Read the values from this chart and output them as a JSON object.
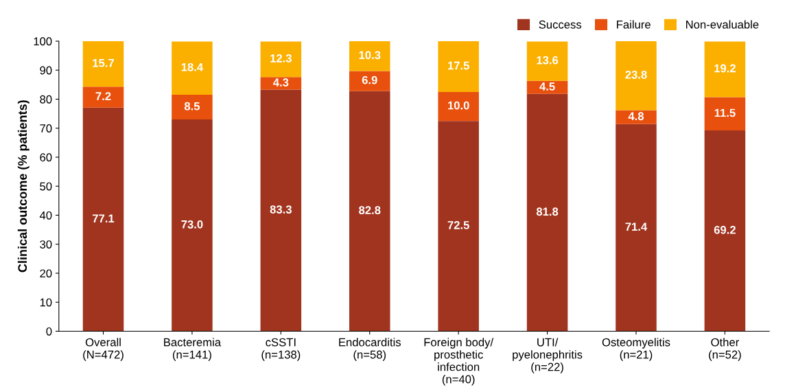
{
  "chart_data": {
    "type": "bar",
    "stacked": true,
    "ylabel": "Clinical outcome (% patients)",
    "categories": [
      "Overall\n(N=472)",
      "Bacteremia\n(n=141)",
      "cSSTI\n(n=138)",
      "Endocarditis\n(n=58)",
      "Foreign body/\nprosthetic\ninfection\n(n=40)",
      "UTI/\npyelonephritis\n(n=22)",
      "Osteomyelitis\n(n=21)",
      "Other\n(n=52)"
    ],
    "series": [
      {
        "name": "Success",
        "color": "#a0341f",
        "values": [
          77.1,
          73.0,
          83.3,
          82.8,
          72.5,
          81.8,
          71.4,
          69.2
        ],
        "value_labels": [
          "77.1",
          "73.0",
          "83.3",
          "82.8",
          "72.5",
          "81.8",
          "71.4",
          "69.2"
        ]
      },
      {
        "name": "Failure",
        "color": "#e8500e",
        "values": [
          7.2,
          8.5,
          4.3,
          6.9,
          10.0,
          4.5,
          4.8,
          11.5
        ],
        "value_labels": [
          "7.2",
          "8.5",
          "4.3",
          "6.9",
          "10.0",
          "4.5",
          "4.8",
          "11.5"
        ]
      },
      {
        "name": "Non-evaluable",
        "color": "#fbb000",
        "values": [
          15.7,
          18.4,
          12.3,
          10.3,
          17.5,
          13.6,
          23.8,
          19.2
        ],
        "value_labels": [
          "15.7",
          "18.4",
          "12.3",
          "10.3",
          "17.5",
          "13.6",
          "23.8",
          "19.2"
        ]
      }
    ],
    "ylim": [
      0,
      100
    ],
    "yticks": [
      0,
      10,
      20,
      30,
      40,
      50,
      60,
      70,
      80,
      90,
      100
    ],
    "grid": false,
    "legend": "top right"
  }
}
